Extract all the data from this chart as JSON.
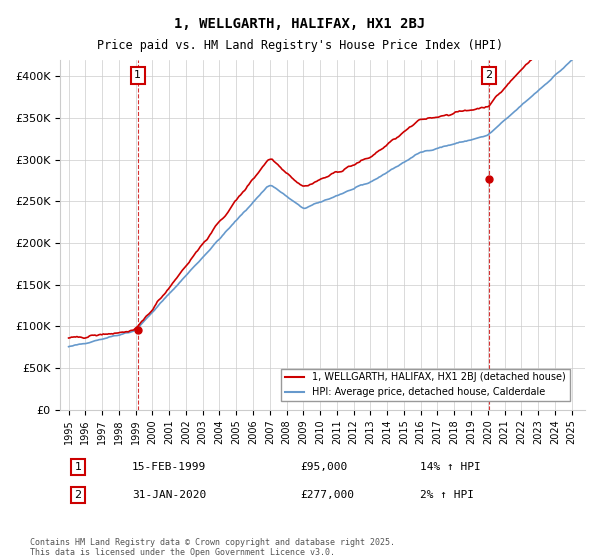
{
  "title": "1, WELLGARTH, HALIFAX, HX1 2BJ",
  "subtitle": "Price paid vs. HM Land Registry's House Price Index (HPI)",
  "legend_line1": "1, WELLGARTH, HALIFAX, HX1 2BJ (detached house)",
  "legend_line2": "HPI: Average price, detached house, Calderdale",
  "footnote": "Contains HM Land Registry data © Crown copyright and database right 2025.\nThis data is licensed under the Open Government Licence v3.0.",
  "annotation1_label": "1",
  "annotation1_date": "15-FEB-1999",
  "annotation1_price": "£95,000",
  "annotation1_hpi": "14% ↑ HPI",
  "annotation2_label": "2",
  "annotation2_date": "31-JAN-2020",
  "annotation2_price": "£277,000",
  "annotation2_hpi": "2% ↑ HPI",
  "red_color": "#cc0000",
  "blue_color": "#6699cc",
  "grid_color": "#cccccc",
  "bg_color": "#ffffff",
  "annotation_box_color": "#cc0000",
  "ylim": [
    0,
    420000
  ],
  "yticks": [
    0,
    50000,
    100000,
    150000,
    200000,
    250000,
    300000,
    350000,
    400000
  ],
  "start_year": 1995,
  "end_year": 2025,
  "transaction1_year": 1999.12,
  "transaction1_price": 95000,
  "transaction2_year": 2020.08,
  "transaction2_price": 277000
}
